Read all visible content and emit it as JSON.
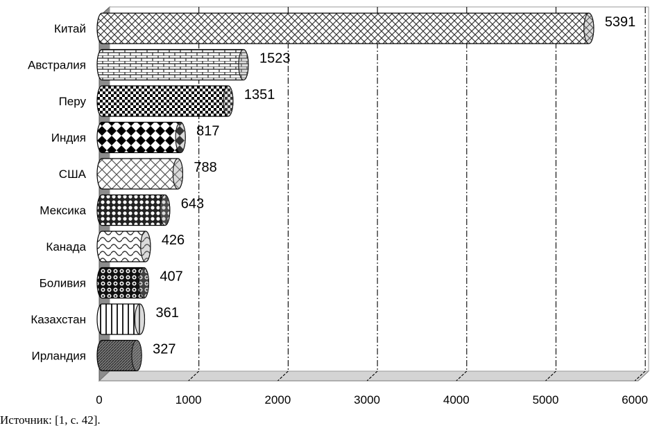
{
  "chart_data": {
    "type": "bar",
    "orientation": "horizontal",
    "style": "3d-cylinder",
    "categories": [
      "Китай",
      "Австралия",
      "Перу",
      "Индия",
      "США",
      "Мексика",
      "Канада",
      "Боливия",
      "Казахстан",
      "Ирландия"
    ],
    "values": [
      5391,
      1523,
      1351,
      817,
      788,
      643,
      426,
      407,
      361,
      327
    ],
    "title": "",
    "xlabel": "",
    "ylabel": "",
    "xlim": [
      0,
      6000
    ],
    "xticks": [
      0,
      1000,
      2000,
      3000,
      4000,
      5000,
      6000
    ],
    "grid": "vertical dash-dot",
    "legend": "none",
    "colors": {
      "bar_fill": "#ffffff",
      "bar_pattern": "#000000",
      "wall": "#8c8c8c",
      "floor": "#d4d4d4"
    }
  },
  "source_note": "Источник: [1, с. 42]."
}
